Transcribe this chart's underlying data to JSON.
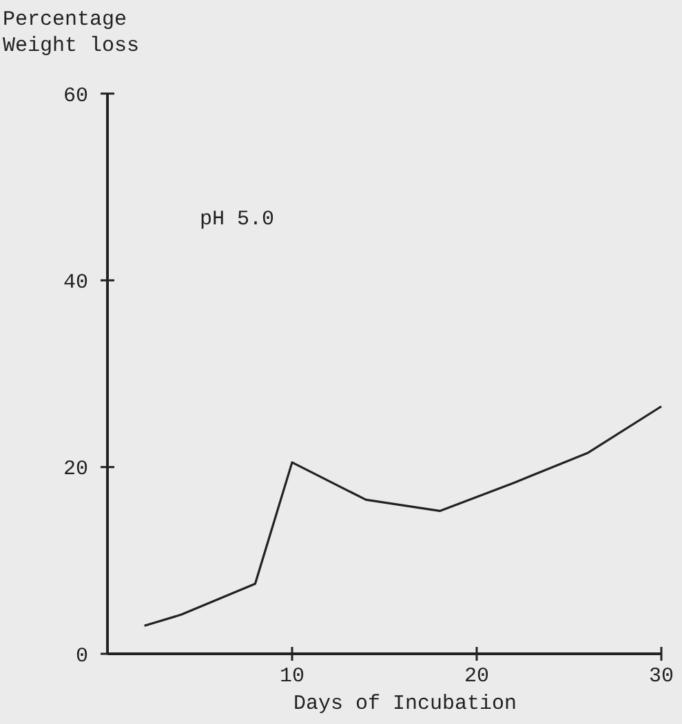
{
  "chart_data": {
    "type": "line",
    "xlabel": "Days of Incubation",
    "ylabel": "Percentage Weight loss",
    "annotations": [
      "pH 5.0"
    ],
    "x": [
      2,
      4,
      8,
      10,
      14,
      18,
      22,
      26,
      30
    ],
    "series": [
      {
        "color": "#222222",
        "values": [
          3,
          4.2,
          7.5,
          20.5,
          16.5,
          15.3,
          18.3,
          21.5,
          26.5
        ]
      }
    ],
    "xlim": [
      0,
      30
    ],
    "ylim": [
      0,
      60
    ],
    "xticks": [
      10,
      20,
      30
    ],
    "yticks": [
      0,
      20,
      40,
      60
    ],
    "grid": false,
    "marker": "none",
    "line_style": "solid"
  }
}
